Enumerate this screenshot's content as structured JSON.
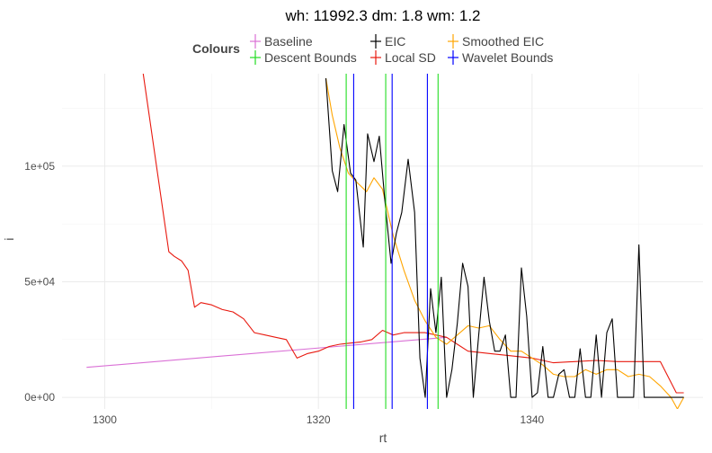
{
  "chart_data": {
    "type": "line",
    "title": "wh: 11992.3 dm: 1.8 wm: 1.2",
    "xlabel": "rt",
    "ylabel": "i",
    "xlim": [
      1296,
      1356
    ],
    "ylim": [
      -5000,
      140000
    ],
    "x_ticks": [
      1300,
      1320,
      1340
    ],
    "x_tick_labels": [
      "1300",
      "1320",
      "1340"
    ],
    "y_ticks": [
      0,
      50000,
      100000
    ],
    "y_tick_labels": [
      "0e+00",
      "5e+04",
      "1e+05"
    ],
    "grid": true,
    "legend": {
      "title": "Colours",
      "position": "top",
      "entries": [
        {
          "name": "Baseline",
          "color": "#DA70D6"
        },
        {
          "name": "Descent Bounds",
          "color": "#22DD22"
        },
        {
          "name": "EIC",
          "color": "#000000"
        },
        {
          "name": "Local SD",
          "color": "#E8190F"
        },
        {
          "name": "Smoothed EIC",
          "color": "#FFA500"
        },
        {
          "name": "Wavelet Bounds",
          "color": "#0000FF"
        }
      ]
    },
    "series": [
      {
        "name": "Baseline",
        "color": "#DA70D6",
        "x": [
          1298.3,
          1332
        ],
        "y": [
          13000,
          26000
        ]
      },
      {
        "name": "Local SD",
        "color": "#E8190F",
        "x": [
          1303.6,
          1306,
          1306.5,
          1307.2,
          1307.8,
          1308.4,
          1309,
          1310,
          1311,
          1312,
          1313,
          1314,
          1315,
          1316,
          1317,
          1318,
          1319,
          1320,
          1321,
          1322,
          1323,
          1324,
          1325,
          1326,
          1327,
          1328,
          1330,
          1332,
          1334,
          1336,
          1338,
          1340,
          1342,
          1344,
          1346,
          1348,
          1350,
          1352,
          1353.5,
          1354.2
        ],
        "y": [
          140000,
          63000,
          61000,
          59000,
          55000,
          39000,
          41000,
          40000,
          38000,
          37000,
          34000,
          28000,
          27000,
          26000,
          25000,
          17000,
          19000,
          20000,
          22000,
          23000,
          23500,
          24000,
          25000,
          29000,
          27000,
          28000,
          28000,
          26000,
          20000,
          19000,
          18000,
          17000,
          15000,
          15500,
          16000,
          15500,
          15500,
          15500,
          2000,
          2000
        ]
      },
      {
        "name": "EIC",
        "color": "#000000",
        "x": [
          1320.7,
          1321.3,
          1321.8,
          1322.4,
          1323,
          1323.5,
          1324.2,
          1324.6,
          1325.2,
          1325.7,
          1326.2,
          1326.8,
          1327.3,
          1327.8,
          1328.4,
          1329,
          1329.5,
          1330,
          1330.5,
          1331,
          1331.5,
          1332,
          1332.5,
          1333,
          1333.5,
          1334,
          1334.5,
          1335,
          1335.5,
          1336,
          1336.5,
          1337,
          1337.5,
          1338,
          1338.5,
          1339,
          1339.5,
          1340,
          1340.5,
          1341,
          1341.5,
          1342,
          1342.5,
          1343,
          1343.5,
          1344,
          1344.5,
          1345,
          1345.5,
          1346,
          1346.5,
          1347,
          1347.5,
          1348,
          1348.5,
          1349,
          1349.5,
          1350,
          1350.5,
          1351,
          1352,
          1353,
          1354.2
        ],
        "y": [
          138000,
          98000,
          89000,
          118000,
          97000,
          94000,
          65000,
          114000,
          102000,
          113000,
          86000,
          58000,
          71000,
          80000,
          103000,
          80000,
          17000,
          0,
          47000,
          28000,
          52000,
          0,
          12000,
          32000,
          58000,
          48000,
          0,
          27000,
          52000,
          33000,
          20000,
          20000,
          27000,
          0,
          0,
          56000,
          35000,
          0,
          2000,
          22000,
          0,
          0,
          10000,
          12000,
          0,
          0,
          21000,
          0,
          0,
          27000,
          0,
          28000,
          34000,
          0,
          0,
          0,
          0,
          66000,
          0,
          0,
          0,
          0,
          0
        ]
      },
      {
        "name": "Smoothed EIC",
        "color": "#FFA500",
        "x": [
          1320.7,
          1321.3,
          1322,
          1322.8,
          1323.6,
          1324.5,
          1325.2,
          1326,
          1327,
          1328,
          1329,
          1330,
          1331,
          1332,
          1333,
          1334,
          1335,
          1336,
          1337,
          1338,
          1339,
          1340,
          1341,
          1342,
          1343,
          1344,
          1345,
          1346,
          1347,
          1348,
          1349,
          1350,
          1351,
          1352,
          1353,
          1353.6,
          1354.2
        ],
        "y": [
          138000,
          122000,
          108000,
          97000,
          93000,
          89000,
          95000,
          90000,
          70000,
          55000,
          42000,
          33000,
          26000,
          23000,
          27000,
          31000,
          30000,
          31000,
          25000,
          20000,
          20000,
          17000,
          14000,
          10000,
          9000,
          9000,
          12000,
          10000,
          12000,
          12000,
          9000,
          10000,
          9000,
          5000,
          0,
          -5000,
          0
        ]
      }
    ],
    "vlines": [
      {
        "name": "Descent Bounds",
        "color": "#22DD22",
        "x": [
          1322.6,
          1326.3,
          1331.2
        ]
      },
      {
        "name": "Wavelet Bounds",
        "color": "#0000FF",
        "x": [
          1323.3,
          1326.9,
          1330.2
        ]
      }
    ]
  }
}
